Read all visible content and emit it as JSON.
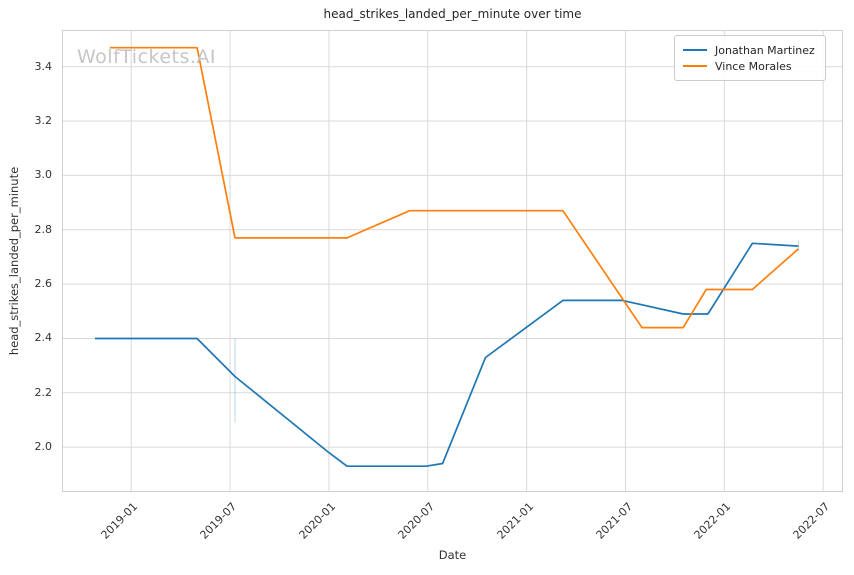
{
  "watermark": {
    "text": "WolfTickets.AI"
  },
  "colors": {
    "series_blue": "#1f77b4",
    "series_orange": "#ff7f0e",
    "grid": "#d9d9d9",
    "spine": "#cfcfcf",
    "text": "#262626",
    "tick_text": "#333333",
    "watermark_text": "#c6c6ca",
    "error_bar": "#1f77b4"
  },
  "chart_data": {
    "type": "line",
    "title": "head_strikes_landed_per_minute over time",
    "xlabel": "Date",
    "ylabel": "head_strikes_landed_per_minute",
    "grid": true,
    "legend_position": "upper right",
    "x_unit": "months since 2019-01",
    "xlim": [
      -4.2,
      43.2
    ],
    "ylim": [
      1.835,
      3.535
    ],
    "xticks": [
      {
        "m": 0,
        "label": "2019-01"
      },
      {
        "m": 6,
        "label": "2019-07"
      },
      {
        "m": 12,
        "label": "2020-01"
      },
      {
        "m": 18,
        "label": "2020-07"
      },
      {
        "m": 24,
        "label": "2021-01"
      },
      {
        "m": 30,
        "label": "2021-07"
      },
      {
        "m": 36,
        "label": "2022-01"
      },
      {
        "m": 42,
        "label": "2022-07"
      }
    ],
    "yticks": [
      {
        "value": 2.0,
        "label": "2.0"
      },
      {
        "value": 2.2,
        "label": "2.2"
      },
      {
        "value": 2.4,
        "label": "2.4"
      },
      {
        "value": 2.6,
        "label": "2.6"
      },
      {
        "value": 2.8,
        "label": "2.8"
      },
      {
        "value": 3.0,
        "label": "3.0"
      },
      {
        "value": 3.2,
        "label": "3.2"
      },
      {
        "value": 3.4,
        "label": "3.4"
      }
    ],
    "series": [
      {
        "name": "Jonathan Martinez",
        "color": "#1f77b4",
        "points": [
          {
            "date": "2018-11",
            "m": -2.2,
            "value": 2.4
          },
          {
            "date": "2019-05",
            "m": 4.0,
            "value": 2.4
          },
          {
            "date": "2019-07",
            "m": 6.3,
            "value": 2.26
          },
          {
            "date": "2020-01",
            "m": 12.0,
            "value": 1.98
          },
          {
            "date": "2020-02",
            "m": 13.1,
            "value": 1.93
          },
          {
            "date": "2020-07",
            "m": 17.9,
            "value": 1.93
          },
          {
            "date": "2020-08",
            "m": 18.9,
            "value": 1.94
          },
          {
            "date": "2020-10",
            "m": 21.5,
            "value": 2.33
          },
          {
            "date": "2021-03",
            "m": 26.2,
            "value": 2.54
          },
          {
            "date": "2021-07",
            "m": 29.8,
            "value": 2.54
          },
          {
            "date": "2021-10",
            "m": 33.5,
            "value": 2.49
          },
          {
            "date": "2021-12",
            "m": 35.0,
            "value": 2.49
          },
          {
            "date": "2022-02",
            "m": 37.7,
            "value": 2.75
          },
          {
            "date": "2022-05",
            "m": 40.5,
            "value": 2.74
          }
        ]
      },
      {
        "name": "Vince Morales",
        "color": "#ff7f0e",
        "points": [
          {
            "date": "2018-12",
            "m": -1.3,
            "value": 3.47
          },
          {
            "date": "2019-05",
            "m": 4.0,
            "value": 3.47
          },
          {
            "date": "2019-07",
            "m": 6.3,
            "value": 2.77
          },
          {
            "date": "2020-02",
            "m": 13.1,
            "value": 2.77
          },
          {
            "date": "2020-06",
            "m": 16.9,
            "value": 2.87
          },
          {
            "date": "2021-03",
            "m": 26.2,
            "value": 2.87
          },
          {
            "date": "2021-08",
            "m": 31.0,
            "value": 2.44
          },
          {
            "date": "2021-10",
            "m": 33.5,
            "value": 2.44
          },
          {
            "date": "2021-12",
            "m": 34.9,
            "value": 2.58
          },
          {
            "date": "2022-02",
            "m": 37.7,
            "value": 2.58
          },
          {
            "date": "2022-05",
            "m": 40.5,
            "value": 2.73
          }
        ]
      }
    ],
    "error_bars": [
      {
        "series": "Jonathan Martinez",
        "m": 6.3,
        "low": 2.09,
        "high": 2.4
      },
      {
        "series": "Jonathan Martinez",
        "m": 40.5,
        "low": 2.72,
        "high": 2.76
      }
    ]
  }
}
